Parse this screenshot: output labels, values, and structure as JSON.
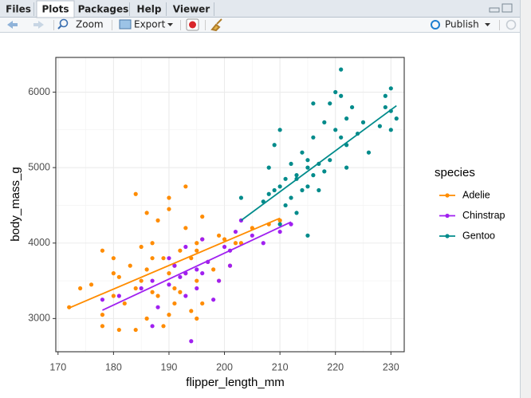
{
  "ui": {
    "tabs": [
      "Files",
      "Plots",
      "Packages",
      "Help",
      "Viewer"
    ],
    "active_tab": 1,
    "toolbar": {
      "zoom": "Zoom",
      "export": "Export",
      "publish": "Publish"
    }
  },
  "chart_data": {
    "type": "scatter",
    "xlabel": "flipper_length_mm",
    "ylabel": "body_mass_g",
    "legend_title": "species",
    "legend_position": "right",
    "grid": true,
    "xlim": [
      169.6,
      232.4
    ],
    "ylim": [
      2560,
      6460
    ],
    "xticks": [
      170,
      180,
      190,
      200,
      210,
      220,
      230
    ],
    "yticks": [
      3000,
      4000,
      5000,
      6000
    ],
    "x_minor_grid": [
      175,
      185,
      195,
      205,
      215,
      225
    ],
    "y_minor_grid": [
      3500,
      4500,
      5500
    ],
    "series": [
      {
        "name": "Adelie",
        "color": "#ff8c00",
        "x": [
          172,
          174,
          176,
          178,
          178,
          180,
          180,
          181,
          181,
          182,
          183,
          184,
          184,
          185,
          185,
          186,
          186,
          187,
          187,
          188,
          188,
          189,
          189,
          190,
          190,
          190,
          191,
          191,
          192,
          192,
          193,
          193,
          194,
          194,
          195,
          195,
          195,
          196,
          196,
          197,
          198,
          199,
          200,
          201,
          202,
          203,
          205,
          208,
          210,
          184,
          186,
          190,
          193,
          178,
          180,
          187,
          195,
          191,
          196,
          199
        ],
        "values": [
          3150,
          3400,
          3450,
          2900,
          3900,
          3800,
          3300,
          2850,
          3550,
          3200,
          3700,
          4650,
          3400,
          3500,
          3950,
          3000,
          3650,
          3350,
          4000,
          3300,
          4300,
          3800,
          2900,
          3600,
          4450,
          3050,
          3700,
          3200,
          3900,
          3350,
          4200,
          3600,
          3800,
          3100,
          3500,
          4000,
          3900,
          4350,
          3200,
          3750,
          3650,
          4100,
          4050,
          3700,
          4000,
          4000,
          4200,
          4250,
          4300,
          2850,
          4400,
          4600,
          4750,
          3050,
          3600,
          3800,
          3000,
          3400,
          4050,
          3500
        ],
        "fit_x": [
          172,
          210
        ],
        "fit_y": [
          3140,
          4330
        ]
      },
      {
        "name": "Chinstrap",
        "color": "#a020f0",
        "x": [
          178,
          181,
          185,
          187,
          187,
          188,
          190,
          190,
          191,
          192,
          193,
          193,
          194,
          195,
          195,
          196,
          196,
          197,
          198,
          199,
          200,
          201,
          201,
          202,
          203,
          205,
          207,
          210,
          212,
          193
        ],
        "values": [
          3250,
          3300,
          3400,
          2900,
          3500,
          3150,
          3450,
          3800,
          3700,
          3550,
          3300,
          3950,
          2700,
          3650,
          3400,
          4050,
          3600,
          3750,
          3250,
          3500,
          3950,
          3900,
          3700,
          4150,
          4300,
          4100,
          4000,
          4150,
          4250,
          3600
        ],
        "fit_x": [
          178,
          212
        ],
        "fit_y": [
          3110,
          4280
        ]
      },
      {
        "name": "Gentoo",
        "color": "#008b8b",
        "x": [
          203,
          207,
          208,
          209,
          209,
          210,
          210,
          211,
          211,
          212,
          212,
          213,
          213,
          214,
          214,
          215,
          215,
          215,
          216,
          216,
          217,
          217,
          218,
          218,
          219,
          219,
          220,
          220,
          221,
          221,
          222,
          222,
          223,
          224,
          225,
          226,
          228,
          229,
          229,
          230,
          230,
          231,
          221,
          216,
          213,
          210,
          230,
          222,
          215,
          208
        ],
        "values": [
          4600,
          4550,
          5000,
          5300,
          4700,
          5500,
          4250,
          4850,
          4500,
          5050,
          4600,
          4900,
          4400,
          5200,
          4700,
          5000,
          4750,
          4100,
          5850,
          5400,
          5050,
          4700,
          5600,
          4950,
          5100,
          5850,
          6000,
          5500,
          6300,
          5400,
          5300,
          5000,
          5800,
          5450,
          5600,
          5200,
          5550,
          5800,
          5950,
          6050,
          5750,
          5650,
          5950,
          4900,
          4850,
          4750,
          5500,
          5650,
          5100,
          4650
        ],
        "fit_x": [
          203,
          231
        ],
        "fit_y": [
          4300,
          5820
        ]
      }
    ]
  }
}
